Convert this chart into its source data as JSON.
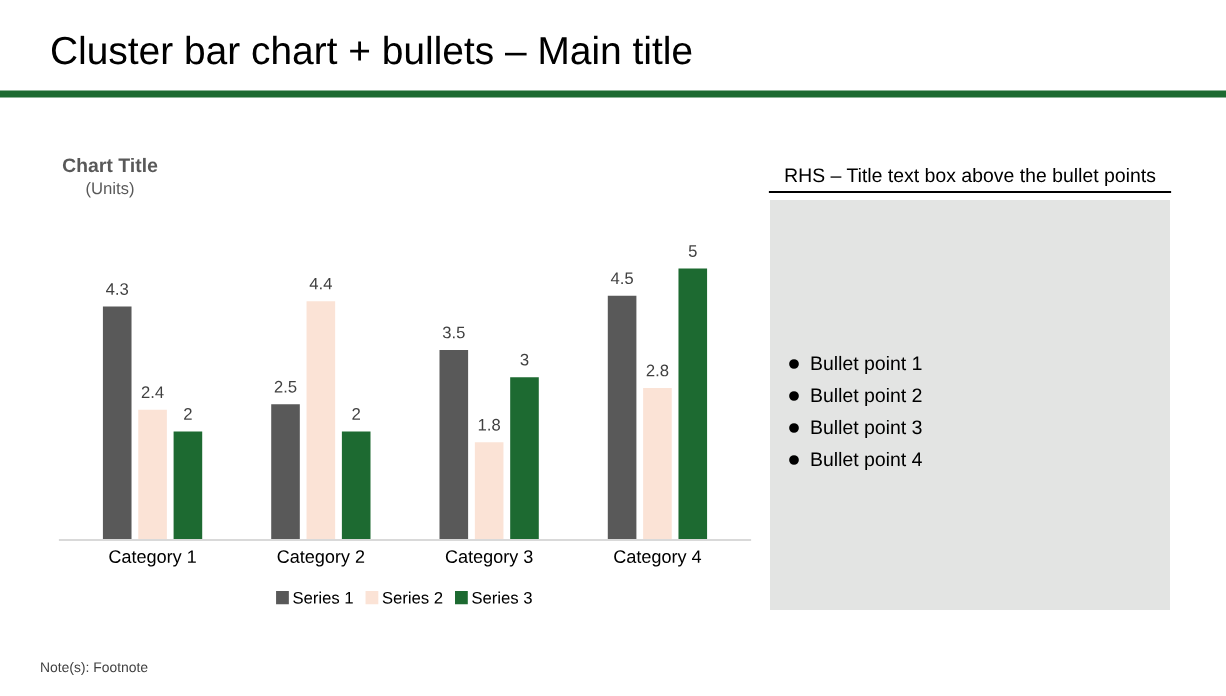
{
  "chart_data": [
    {
      "type": "bar",
      "title": "Chart Title",
      "subtitle": "(Units)",
      "categories": [
        "Category 1",
        "Category 2",
        "Category 3",
        "Category 4"
      ],
      "series": [
        {
          "name": "Series 1",
          "color": "#595959",
          "values": [
            4.3,
            2.5,
            3.5,
            4.5
          ]
        },
        {
          "name": "Series 2",
          "color": "#fbe3d6",
          "values": [
            2.4,
            4.4,
            1.8,
            2.8
          ]
        },
        {
          "name": "Series 3",
          "color": "#1d6a31",
          "values": [
            2,
            2,
            3,
            5
          ]
        }
      ],
      "data_labels": true,
      "tick_labels": "x",
      "legend": "bottom",
      "annotations": [
        "Cluster bar chart + bullets – Main title",
        "Note(s): Footnote"
      ]
    },
    {
      "type": "other",
      "title": "RHS – Title text box above the bullet points",
      "annotations": [
        "Bullet point 1",
        "Bullet point 2",
        "Bullet point 3",
        "Bullet point 4"
      ]
    }
  ]
}
